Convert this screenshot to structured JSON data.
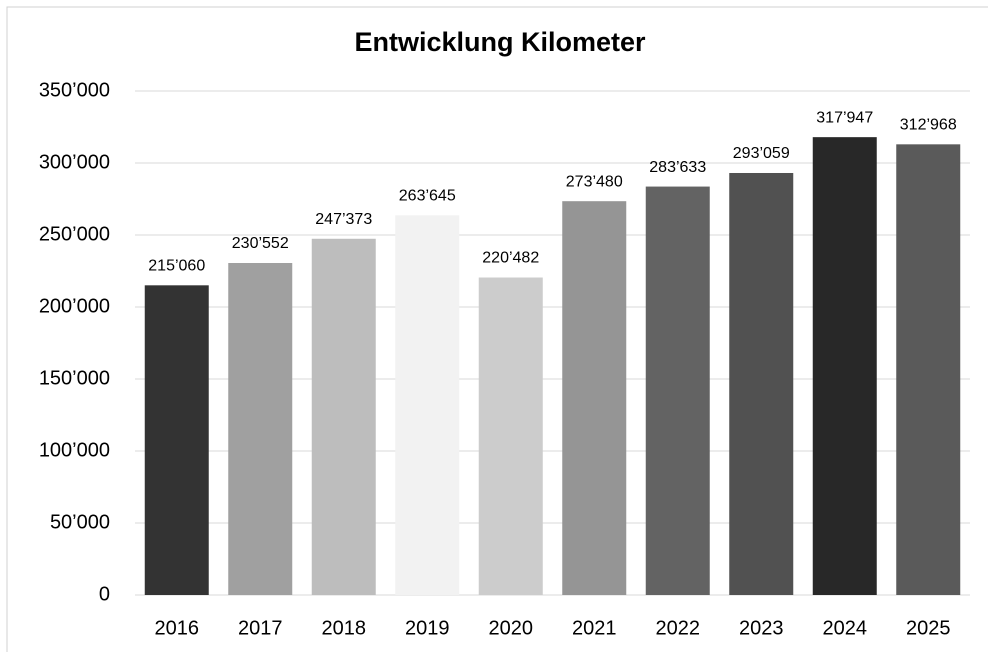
{
  "chart_data": {
    "type": "bar",
    "title": "Entwicklung Kilometer",
    "categories": [
      "2016",
      "2017",
      "2018",
      "2019",
      "2020",
      "2021",
      "2022",
      "2023",
      "2024",
      "2025"
    ],
    "values": [
      215060,
      230552,
      247373,
      263645,
      220482,
      273480,
      283633,
      293059,
      317947,
      312968
    ],
    "value_labels": [
      "215’060",
      "230’552",
      "247’373",
      "263’645",
      "220’482",
      "273’480",
      "283’633",
      "293’059",
      "317’947",
      "312’968"
    ],
    "colors": [
      "#333333",
      "#a0a0a0",
      "#bdbdbd",
      "#f2f2f2",
      "#cccccc",
      "#959595",
      "#636363",
      "#515151",
      "#282828",
      "#5a5a5a"
    ],
    "ylim": [
      0,
      350000
    ],
    "yticks": [
      0,
      {
        "value": 50000,
        "label": "50’000"
      },
      {
        "value": 100000,
        "label": "100’000"
      },
      {
        "value": 150000,
        "label": "150’000"
      },
      {
        "value": 200000,
        "label": "200’000"
      },
      {
        "value": 250000,
        "label": "250’000"
      },
      {
        "value": 300000,
        "label": "300’000"
      },
      {
        "value": 350000,
        "label": "350’000"
      }
    ],
    "grid": true
  }
}
